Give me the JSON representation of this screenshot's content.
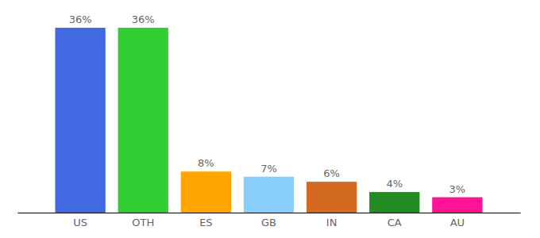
{
  "chart_data": {
    "type": "bar",
    "categories": [
      "US",
      "OTH",
      "ES",
      "GB",
      "IN",
      "CA",
      "AU"
    ],
    "values": [
      36,
      36,
      8,
      7,
      6,
      4,
      3
    ],
    "value_labels": [
      "36%",
      "36%",
      "8%",
      "7%",
      "6%",
      "4%",
      "3%"
    ],
    "colors": [
      "#4169e1",
      "#32cd32",
      "#ffa500",
      "#87cefa",
      "#d2691e",
      "#228b22",
      "#ff1493"
    ],
    "ylim": [
      0,
      36
    ],
    "data_labels": true,
    "tick_labels": "x"
  }
}
